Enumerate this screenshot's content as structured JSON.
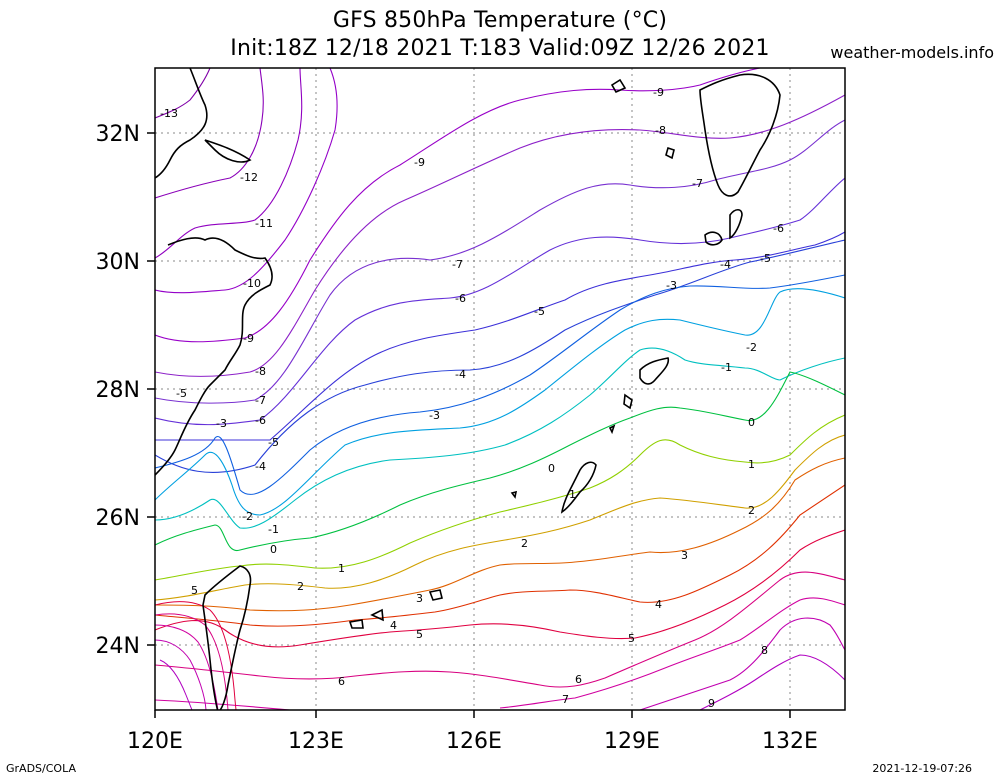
{
  "title": "GFS 850hPa Temperature (°C)",
  "subtitle": "Init:18Z 12/18 2021 T:183 Valid:09Z 12/26 2021",
  "source": "weather-models.info",
  "footer_left": "GrADS/COLA",
  "footer_right": "2021-12-19-07:26",
  "map": {
    "lon_range": [
      120,
      133
    ],
    "lat_range": [
      23,
      33
    ],
    "x_ticks": [
      "120E",
      "123E",
      "126E",
      "129E",
      "132E"
    ],
    "y_ticks": [
      "24N",
      "26N",
      "28N",
      "30N",
      "32N"
    ]
  },
  "contour_levels": [
    {
      "level": "-13",
      "color": "#8000a8"
    },
    {
      "level": "-12",
      "color": "#8a00b8"
    },
    {
      "level": "-11",
      "color": "#9000c0"
    },
    {
      "level": "-10",
      "color": "#9400c8"
    },
    {
      "level": "-9",
      "color": "#9800c8"
    },
    {
      "level": "-8",
      "color": "#8c20c8"
    },
    {
      "level": "-7",
      "color": "#7830d0"
    },
    {
      "level": "-6",
      "color": "#6430d8"
    },
    {
      "level": "-5",
      "color": "#3c30d8"
    },
    {
      "level": "-4",
      "color": "#2840d8"
    },
    {
      "level": "-3",
      "color": "#1060e0"
    },
    {
      "level": "-2",
      "color": "#00a0e0"
    },
    {
      "level": "-1",
      "color": "#00c0c0"
    },
    {
      "level": "0",
      "color": "#00c040"
    },
    {
      "level": "1",
      "color": "#90d000"
    },
    {
      "level": "2",
      "color": "#d0a000"
    },
    {
      "level": "3",
      "color": "#e06000"
    },
    {
      "level": "4",
      "color": "#e03000"
    },
    {
      "level": "5",
      "color": "#e00040"
    },
    {
      "level": "6",
      "color": "#d80080"
    },
    {
      "level": "7",
      "color": "#d000a0"
    },
    {
      "level": "8",
      "color": "#c000b0"
    },
    {
      "level": "9",
      "color": "#b000c0"
    }
  ]
}
